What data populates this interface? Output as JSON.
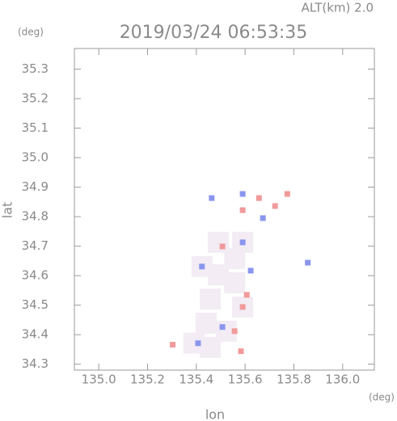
{
  "chart_data": {
    "type": "scatter",
    "title": "2019/03/24 06:53:35",
    "subtitle": "ALT(km) 2.0",
    "y_unit": "(deg)",
    "x_unit": "(deg)",
    "x_label": "lon",
    "y_label": "lat",
    "xlim": [
      134.9,
      136.13
    ],
    "ylim": [
      34.28,
      35.37
    ],
    "xticks": [
      {
        "value": 135.0,
        "label": "135.0"
      },
      135.2,
      135.4,
      135.6,
      135.8,
      {
        "value": 136.0,
        "label": "136.0"
      }
    ],
    "yticks": [
      34.3,
      34.4,
      34.5,
      34.6,
      34.7,
      34.8,
      34.9,
      {
        "value": 35.0,
        "label": "35.0"
      },
      35.1,
      35.2,
      35.3
    ],
    "series": [
      {
        "color": "#f3ecf4",
        "x": [
          135.557,
          135.49,
          135.457,
          135.44,
          135.523,
          135.59,
          135.557,
          135.39,
          135.457,
          135.59,
          135.49,
          135.423
        ],
        "values": [
          34.658,
          34.603,
          34.521,
          34.439,
          34.412,
          34.494,
          34.576,
          34.371,
          34.357,
          34.713,
          34.713,
          34.631
        ]
      },
      {
        "color": "#f19a9a",
        "x": [
          135.657,
          135.773,
          135.59,
          135.723,
          135.59,
          135.557,
          135.303,
          135.583,
          135.607,
          135.507
        ],
        "values": [
          34.863,
          34.877,
          34.822,
          34.836,
          34.494,
          34.412,
          34.366,
          34.344,
          34.535,
          34.699
        ]
      },
      {
        "color": "#8a96ee",
        "x": [
          135.59,
          135.673,
          135.423,
          135.407,
          135.623,
          135.59,
          135.507,
          135.463,
          135.857
        ],
        "values": [
          34.877,
          34.795,
          34.631,
          34.371,
          34.617,
          34.713,
          34.426,
          34.863,
          34.644
        ]
      }
    ]
  }
}
